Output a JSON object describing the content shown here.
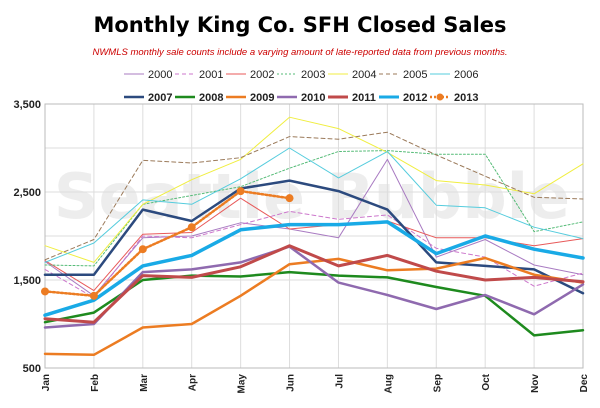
{
  "chart_data": {
    "type": "line",
    "title": "Monthly King Co. SFH Closed Sales",
    "subtitle": "NWMLS monthly sale counts include a varying amount of late-reported  data from previous months.",
    "watermark": "Seattle Bubble",
    "xlabel": "",
    "ylabel": "",
    "categories": [
      "Jan",
      "Feb",
      "Mar",
      "Apr",
      "May",
      "Jun",
      "Jul",
      "Aug",
      "Sep",
      "Oct",
      "Nov",
      "Dec"
    ],
    "ylim": [
      500,
      3500
    ],
    "yticks": [
      "500",
      "1,500",
      "2,500",
      "3,500"
    ],
    "grid": true,
    "legend_position": "top",
    "colors": {
      "title": "#000000",
      "subtitle": "#cc0000",
      "grid": "#dddddd"
    },
    "series": [
      {
        "name": "2000",
        "color": "#a97bc2",
        "style": "solid",
        "width": 1,
        "markers": false,
        "values": [
          1710,
          1320,
          1980,
          2000,
          2150,
          2080,
          1980,
          2870,
          1760,
          1960,
          1670,
          1560
        ]
      },
      {
        "name": "2001",
        "color": "#cc77cc",
        "style": "dashed",
        "width": 1,
        "markers": false,
        "values": [
          1620,
          1300,
          2000,
          1980,
          2130,
          2280,
          2190,
          2240,
          1860,
          1760,
          1430,
          1580
        ]
      },
      {
        "name": "2002",
        "color": "#e85a5a",
        "style": "solid",
        "width": 1,
        "markers": false,
        "values": [
          1720,
          1380,
          2020,
          2040,
          2430,
          2080,
          2130,
          2170,
          1980,
          1980,
          1890,
          1970
        ]
      },
      {
        "name": "2003",
        "color": "#55bb77",
        "style": "dotted",
        "width": 1,
        "markers": false,
        "values": [
          1670,
          1660,
          2360,
          2460,
          2560,
          2770,
          2960,
          2970,
          2930,
          2930,
          2050,
          2160
        ]
      },
      {
        "name": "2004",
        "color": "#f0ee40",
        "style": "solid",
        "width": 1,
        "markers": false,
        "values": [
          1890,
          1700,
          2360,
          2640,
          2870,
          3350,
          3220,
          2950,
          2630,
          2580,
          2480,
          2820
        ]
      },
      {
        "name": "2005",
        "color": "#9b7a5a",
        "style": "dashed",
        "width": 1,
        "markers": false,
        "values": [
          1730,
          1960,
          2860,
          2830,
          2890,
          3130,
          3100,
          3180,
          2920,
          2680,
          2440,
          2420
        ]
      },
      {
        "name": "2006",
        "color": "#55ccdd",
        "style": "solid",
        "width": 1,
        "markers": false,
        "values": [
          1700,
          1920,
          2410,
          2360,
          2650,
          3000,
          2660,
          2960,
          2350,
          2320,
          2100,
          1970
        ]
      },
      {
        "name": "2007",
        "color": "#2c4a7e",
        "style": "solid",
        "width": 2.5,
        "markers": false,
        "values": [
          1560,
          1560,
          2300,
          2170,
          2540,
          2630,
          2510,
          2300,
          1700,
          1660,
          1620,
          1350
        ]
      },
      {
        "name": "2008",
        "color": "#1e8a1e",
        "style": "solid",
        "width": 2.5,
        "markers": false,
        "values": [
          1020,
          1130,
          1500,
          1550,
          1540,
          1590,
          1550,
          1530,
          1420,
          1320,
          870,
          930
        ]
      },
      {
        "name": "2009",
        "color": "#ec7c22",
        "style": "solid",
        "width": 2.5,
        "markers": false,
        "values": [
          660,
          650,
          960,
          1000,
          1320,
          1680,
          1740,
          1610,
          1630,
          1750,
          1560,
          1470
        ]
      },
      {
        "name": "2010",
        "color": "#8f6aaf",
        "style": "solid",
        "width": 2.5,
        "markers": false,
        "values": [
          960,
          1000,
          1590,
          1620,
          1700,
          1880,
          1470,
          1330,
          1170,
          1330,
          1110,
          1450
        ]
      },
      {
        "name": "2011",
        "color": "#c04a4a",
        "style": "solid",
        "width": 3,
        "markers": false,
        "values": [
          1060,
          1020,
          1550,
          1530,
          1650,
          1890,
          1660,
          1780,
          1600,
          1500,
          1530,
          1480
        ]
      },
      {
        "name": "2012",
        "color": "#19aae6",
        "style": "solid",
        "width": 3.5,
        "markers": false,
        "values": [
          1100,
          1270,
          1660,
          1780,
          2070,
          2130,
          2130,
          2160,
          1800,
          2000,
          1850,
          1750
        ]
      },
      {
        "name": "2013",
        "color": "#ec7c22",
        "style": "dotted",
        "width": 2.5,
        "markers": true,
        "values": [
          1370,
          1320,
          1850,
          2100,
          2510,
          2430,
          null,
          null,
          null,
          null,
          null,
          null
        ]
      }
    ]
  }
}
